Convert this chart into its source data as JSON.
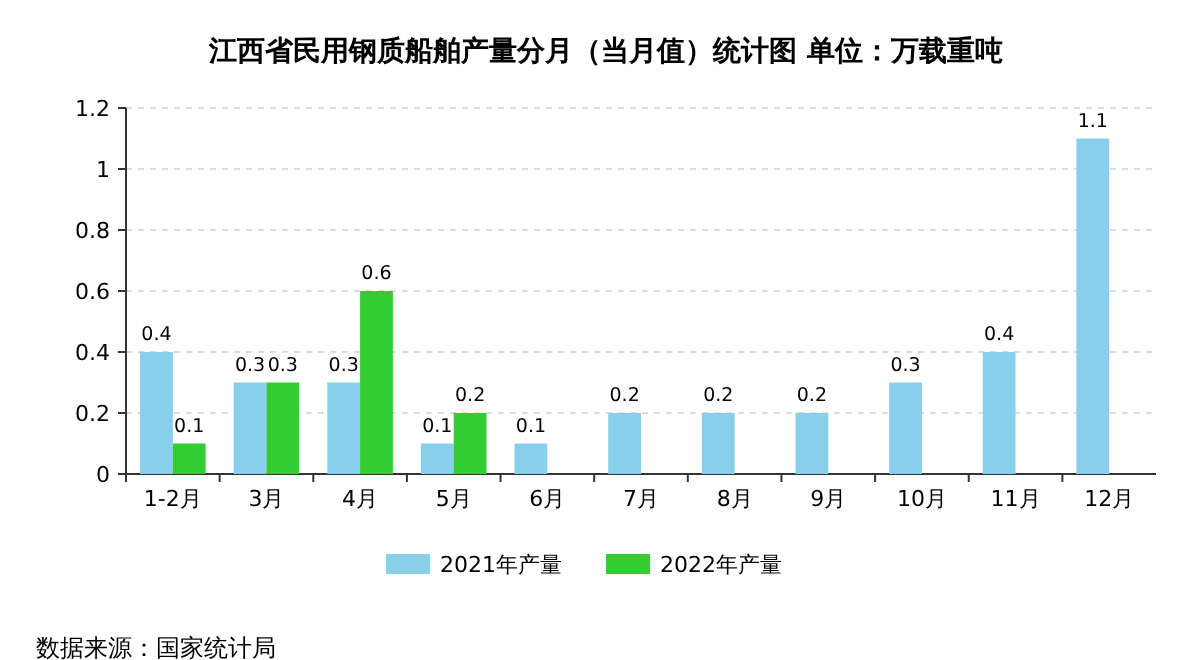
{
  "chart_data": {
    "type": "bar",
    "title": "江西省民用钢质船舶产量分月（当月值）统计图 单位：万载重吨",
    "categories": [
      "1-2月",
      "3月",
      "4月",
      "5月",
      "6月",
      "7月",
      "8月",
      "9月",
      "10月",
      "11月",
      "12月"
    ],
    "series": [
      {
        "name": "2021年产量",
        "color": "#87cfea",
        "values": [
          0.4,
          0.3,
          0.3,
          0.1,
          0.1,
          0.2,
          0.2,
          0.2,
          0.3,
          0.4,
          1.1
        ]
      },
      {
        "name": "2022年产量",
        "color": "#33cc33",
        "values": [
          0.1,
          0.3,
          0.6,
          0.2,
          null,
          null,
          null,
          null,
          null,
          null,
          null
        ]
      }
    ],
    "ylim": [
      0,
      1.2
    ],
    "yticks": [
      0,
      0.2,
      0.4,
      0.6,
      0.8,
      1,
      1.2
    ],
    "grid": "y",
    "legend": "bottom",
    "data_labels": true,
    "annotations": [
      "数据来源：国家统计局"
    ]
  }
}
